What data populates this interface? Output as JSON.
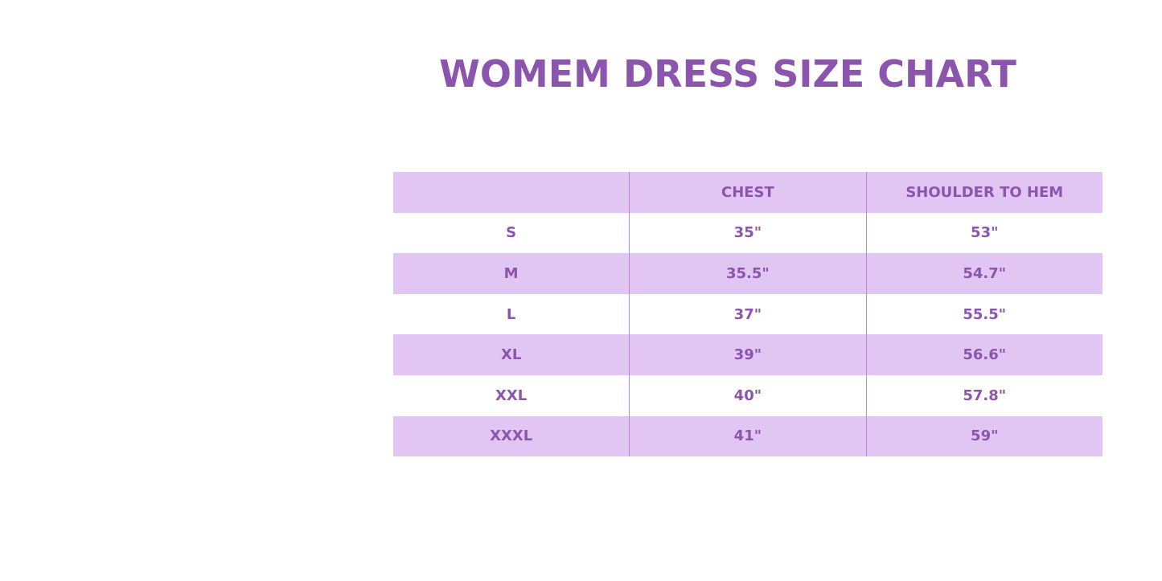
{
  "title": "WOMEM DRESS SIZE CHART",
  "colors": {
    "accent": "#8b55ad",
    "row_shade": "#e1c6f4"
  },
  "table": {
    "headers": [
      "",
      "CHEST",
      "SHOULDER TO HEM"
    ],
    "rows": [
      [
        "S",
        "35\"",
        "53\""
      ],
      [
        "M",
        "35.5\"",
        "54.7\""
      ],
      [
        "L",
        "37\"",
        "55.5\""
      ],
      [
        "XL",
        "39\"",
        "56.6\""
      ],
      [
        "XXL",
        "40\"",
        "57.8\""
      ],
      [
        "XXXL",
        "41\"",
        "59\""
      ]
    ]
  }
}
